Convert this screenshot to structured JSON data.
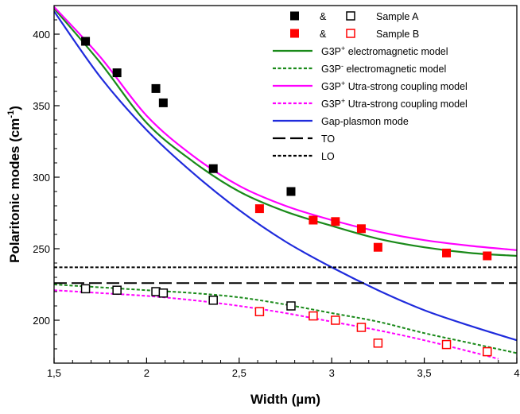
{
  "chart_data": {
    "type": "scatter",
    "xlabel": "Width (µm)",
    "ylabel_main": "Polaritonic modes (cm",
    "ylabel_sup": "-1",
    "ylabel_close": ")",
    "xlim": [
      1.5,
      4.0
    ],
    "ylim": [
      170,
      420
    ],
    "xticks": [
      {
        "value": 1.5,
        "label": "1,5"
      },
      {
        "value": 2.0,
        "label": "2"
      },
      {
        "value": 2.5,
        "label": "2,5"
      },
      {
        "value": 3.0,
        "label": "3"
      },
      {
        "value": 3.5,
        "label": "3,5"
      },
      {
        "value": 4.0,
        "label": "4"
      }
    ],
    "yticks": [
      {
        "value": 200,
        "label": "200"
      },
      {
        "value": 250,
        "label": "250"
      },
      {
        "value": 300,
        "label": "300"
      },
      {
        "value": 350,
        "label": "350"
      },
      {
        "value": 400,
        "label": "400"
      }
    ],
    "grid": false,
    "legend_position": "top-right",
    "legend": [
      {
        "kind": "markers",
        "amp": "&",
        "label": "Sample A",
        "color": "#000000"
      },
      {
        "kind": "markers",
        "amp": "&",
        "label": "Sample B",
        "color": "#ff0000"
      },
      {
        "kind": "line",
        "pre": "G3P",
        "sup": "+",
        "post": " electromagnetic model",
        "color": "#1a8a1a",
        "dash": "solid"
      },
      {
        "kind": "line",
        "pre": "G3P",
        "sup": "-",
        "post": " electromagnetic model",
        "color": "#1a8a1a",
        "dash": "dashed"
      },
      {
        "kind": "line",
        "pre": "G3P",
        "sup": "+",
        "post": " Utra-strong coupling model",
        "color": "#ff00ff",
        "dash": "solid"
      },
      {
        "kind": "line",
        "pre": "G3P",
        "sup": "+",
        "post": " Utra-strong coupling model",
        "color": "#ff00ff",
        "dash": "dashed"
      },
      {
        "kind": "line",
        "pre": "",
        "sup": "",
        "post": "Gap-plasmon mode",
        "color": "#1f2bdc",
        "dash": "solid"
      },
      {
        "kind": "line",
        "pre": "",
        "sup": "",
        "post": "TO",
        "color": "#000000",
        "dash": "longdash"
      },
      {
        "kind": "line",
        "pre": "",
        "sup": "",
        "post": "LO",
        "color": "#000000",
        "dash": "dashed"
      }
    ],
    "series": [
      {
        "name": "Sample A",
        "marker": "filled-square",
        "color": "#000000",
        "points": [
          [
            1.67,
            395
          ],
          [
            1.84,
            373
          ],
          [
            2.05,
            362
          ],
          [
            2.09,
            352
          ],
          [
            2.36,
            306
          ],
          [
            2.78,
            290
          ]
        ]
      },
      {
        "name": "Sample A",
        "marker": "open-square",
        "color": "#000000",
        "points": [
          [
            1.67,
            222
          ],
          [
            1.84,
            221
          ],
          [
            2.05,
            220
          ],
          [
            2.09,
            219
          ],
          [
            2.36,
            214
          ],
          [
            2.78,
            210
          ]
        ]
      },
      {
        "name": "Sample B",
        "marker": "filled-square",
        "color": "#ff0000",
        "points": [
          [
            2.61,
            278
          ],
          [
            2.9,
            270
          ],
          [
            3.02,
            269
          ],
          [
            3.16,
            264
          ],
          [
            3.25,
            251
          ],
          [
            3.62,
            247
          ],
          [
            3.84,
            245
          ]
        ]
      },
      {
        "name": "Sample B",
        "marker": "open-square",
        "color": "#ff0000",
        "points": [
          [
            2.61,
            206
          ],
          [
            2.9,
            203
          ],
          [
            3.02,
            200
          ],
          [
            3.16,
            195
          ],
          [
            3.25,
            184
          ],
          [
            3.62,
            183
          ],
          [
            3.84,
            178
          ]
        ]
      },
      {
        "name": "G3P+ electromagnetic model",
        "line": "solid",
        "color": "#1a8a1a",
        "points": [
          [
            1.5,
            418
          ],
          [
            1.75,
            380
          ],
          [
            2.0,
            338
          ],
          [
            2.25,
            311
          ],
          [
            2.5,
            290
          ],
          [
            2.75,
            276
          ],
          [
            3.0,
            266
          ],
          [
            3.25,
            257
          ],
          [
            3.5,
            251
          ],
          [
            3.75,
            247
          ],
          [
            4.0,
            245
          ]
        ]
      },
      {
        "name": "G3P- electromagnetic model",
        "line": "dashed",
        "color": "#1a8a1a",
        "points": [
          [
            1.5,
            225
          ],
          [
            2.0,
            221
          ],
          [
            2.25,
            219
          ],
          [
            2.5,
            216
          ],
          [
            2.75,
            211
          ],
          [
            3.0,
            205
          ],
          [
            3.25,
            199
          ],
          [
            3.5,
            191
          ],
          [
            3.75,
            184
          ],
          [
            4.0,
            177
          ]
        ]
      },
      {
        "name": "G3P+ Utra-strong coupling model",
        "line": "solid",
        "color": "#ff00ff",
        "points": [
          [
            1.5,
            419
          ],
          [
            1.75,
            384
          ],
          [
            2.0,
            343
          ],
          [
            2.25,
            315
          ],
          [
            2.5,
            294
          ],
          [
            2.75,
            280
          ],
          [
            3.0,
            270
          ],
          [
            3.25,
            262
          ],
          [
            3.5,
            256
          ],
          [
            3.75,
            252
          ],
          [
            4.0,
            249
          ]
        ]
      },
      {
        "name": "G3P+ Utra-strong coupling model",
        "line": "dashed",
        "color": "#ff00ff",
        "points": [
          [
            1.5,
            221
          ],
          [
            1.75,
            219
          ],
          [
            2.0,
            217
          ],
          [
            2.25,
            214
          ],
          [
            2.5,
            210
          ],
          [
            2.75,
            205
          ],
          [
            3.0,
            199
          ],
          [
            3.25,
            193
          ],
          [
            3.5,
            186
          ],
          [
            3.75,
            178
          ],
          [
            3.9,
            173
          ]
        ]
      },
      {
        "name": "Gap-plasmon mode",
        "line": "solid",
        "color": "#1f2bdc",
        "points": [
          [
            1.5,
            416
          ],
          [
            1.75,
            370
          ],
          [
            2.0,
            333
          ],
          [
            2.25,
            303
          ],
          [
            2.5,
            277
          ],
          [
            2.75,
            255
          ],
          [
            3.0,
            237
          ],
          [
            3.25,
            221
          ],
          [
            3.5,
            207
          ],
          [
            3.75,
            196
          ],
          [
            4.0,
            186
          ]
        ]
      },
      {
        "name": "TO",
        "line": "longdash",
        "color": "#000000",
        "points": [
          [
            1.5,
            226
          ],
          [
            4.0,
            226
          ]
        ]
      },
      {
        "name": "LO",
        "line": "dashed",
        "color": "#000000",
        "points": [
          [
            1.5,
            237
          ],
          [
            4.0,
            237
          ]
        ]
      }
    ]
  }
}
